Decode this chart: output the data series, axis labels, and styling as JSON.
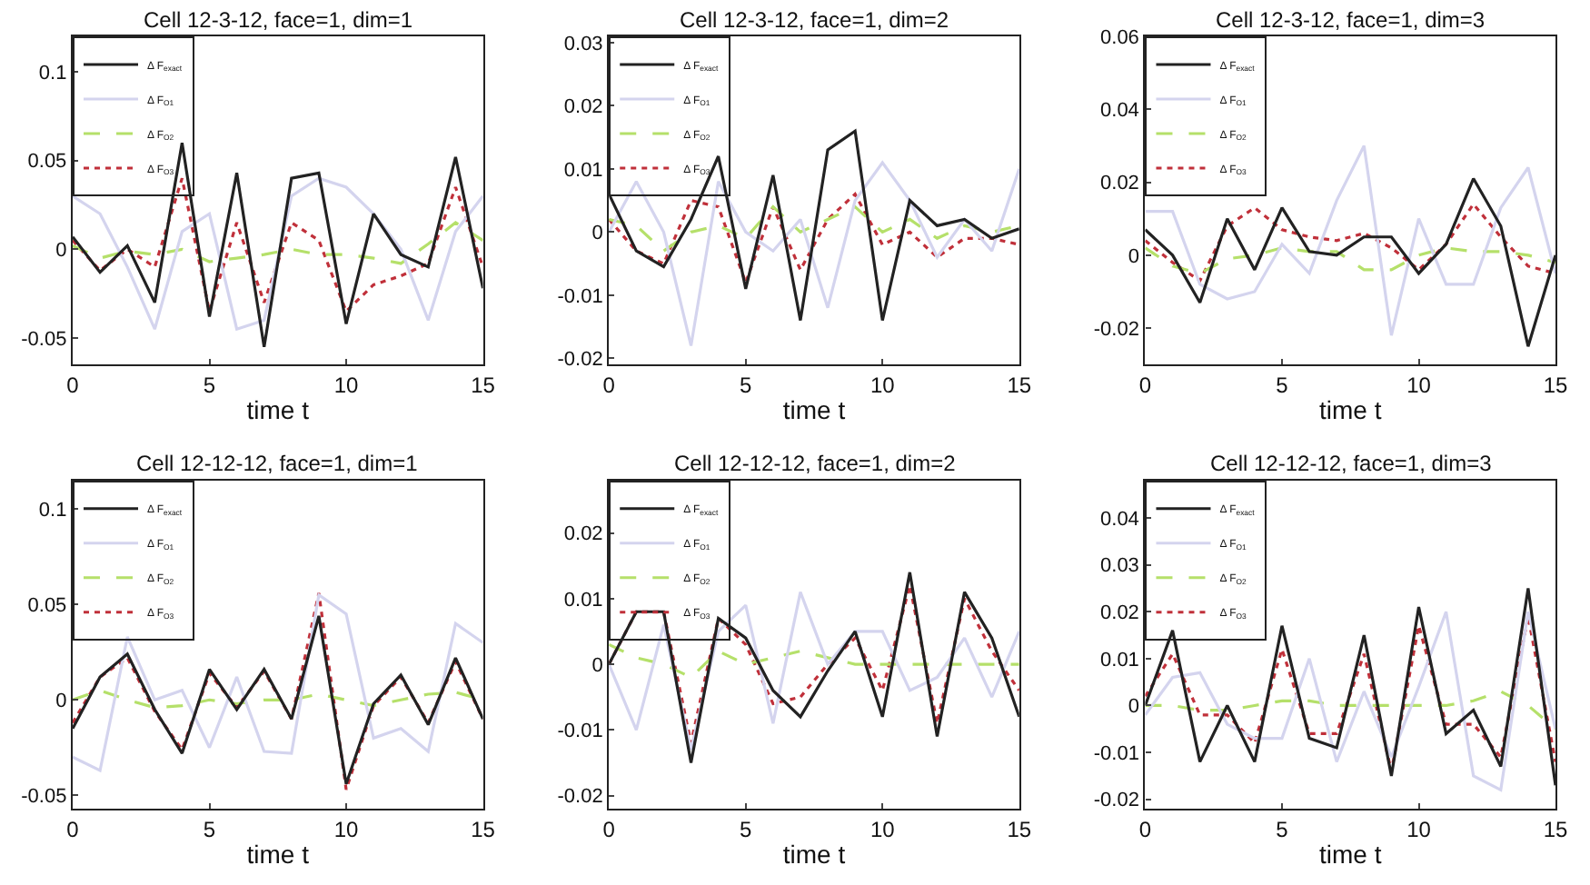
{
  "chart_data": [
    {
      "type": "line",
      "title": "Cell 12-3-12, face=1, dim=1",
      "xlabel": "time t",
      "x": [
        0,
        1,
        2,
        3,
        4,
        5,
        6,
        7,
        8,
        9,
        10,
        11,
        12,
        13,
        14,
        15
      ],
      "xlim": [
        0,
        15
      ],
      "xticks": [
        0,
        5,
        10,
        15
      ],
      "ylim": [
        -0.065,
        0.12
      ],
      "yticks": [
        -0.05,
        0,
        0.05,
        0.1
      ],
      "grid": false,
      "legend": "top left",
      "series": [
        {
          "name": "Δ F$_{exact}$",
          "color": "#222222",
          "line_style": "solid",
          "values": [
            0.007,
            -0.013,
            0.002,
            -0.03,
            0.06,
            -0.038,
            0.043,
            -0.055,
            0.04,
            0.043,
            -0.042,
            0.02,
            -0.003,
            -0.01,
            0.052,
            -0.022
          ]
        },
        {
          "name": "Δ F$_{O1}$",
          "color": "#d4d4ee",
          "line_style": "solid",
          "values": [
            0.03,
            0.02,
            -0.01,
            -0.045,
            0.01,
            0.02,
            -0.045,
            -0.04,
            0.03,
            0.04,
            0.035,
            0.02,
            0.0,
            -0.04,
            0.01,
            0.03
          ]
        },
        {
          "name": "Δ F$_{O2}$",
          "color": "#b5e06a",
          "line_style": "dashed",
          "values": [
            0.002,
            -0.005,
            -0.001,
            -0.003,
            0.0,
            -0.007,
            -0.005,
            -0.003,
            0.0,
            -0.003,
            -0.003,
            -0.005,
            -0.008,
            0.003,
            0.015,
            0.005
          ]
        },
        {
          "name": "Δ F$_{O3}$",
          "color": "#c0303a",
          "line_style": "dotted",
          "values": [
            0.005,
            -0.012,
            0.0,
            -0.01,
            0.04,
            -0.035,
            0.015,
            -0.03,
            0.015,
            0.005,
            -0.035,
            -0.02,
            -0.015,
            -0.008,
            0.035,
            -0.01
          ]
        }
      ]
    },
    {
      "type": "line",
      "title": "Cell 12-3-12, face=1, dim=2",
      "xlabel": "time t",
      "x": [
        0,
        1,
        2,
        3,
        4,
        5,
        6,
        7,
        8,
        9,
        10,
        11,
        12,
        13,
        14,
        15
      ],
      "xlim": [
        0,
        15
      ],
      "xticks": [
        0,
        5,
        10,
        15
      ],
      "ylim": [
        -0.021,
        0.031
      ],
      "yticks": [
        -0.02,
        -0.01,
        0,
        0.01,
        0.02,
        0.03
      ],
      "grid": false,
      "legend": "top left",
      "series": [
        {
          "name": "Δ F$_{exact}$",
          "color": "#222222",
          "line_style": "solid",
          "values": [
            0.006,
            -0.003,
            -0.0055,
            0.002,
            0.012,
            -0.009,
            0.009,
            -0.014,
            0.013,
            0.016,
            -0.014,
            0.005,
            0.001,
            0.002,
            -0.001,
            0.0005
          ]
        },
        {
          "name": "Δ F$_{O1}$",
          "color": "#d4d4ee",
          "line_style": "solid",
          "values": [
            0.0,
            0.008,
            0.0,
            -0.018,
            0.008,
            0.0,
            -0.003,
            0.002,
            -0.012,
            0.005,
            0.011,
            0.005,
            -0.004,
            0.002,
            -0.003,
            0.01
          ]
        },
        {
          "name": "Δ F$_{O2}$",
          "color": "#b5e06a",
          "line_style": "dashed",
          "values": [
            0.002,
            0.001,
            -0.003,
            0.0,
            0.001,
            -0.001,
            0.004,
            0.0,
            0.002,
            0.004,
            0.0,
            0.002,
            -0.001,
            0.001,
            0.0,
            0.001
          ]
        },
        {
          "name": "Δ F$_{O3}$",
          "color": "#c0303a",
          "line_style": "dotted",
          "values": [
            0.002,
            -0.003,
            -0.005,
            0.005,
            0.004,
            -0.008,
            0.004,
            -0.006,
            0.002,
            0.006,
            -0.002,
            0.0,
            -0.004,
            -0.001,
            -0.001,
            -0.002
          ]
        }
      ]
    },
    {
      "type": "line",
      "title": "Cell 12-3-12, face=1, dim=3",
      "xlabel": "time t",
      "x": [
        0,
        1,
        2,
        3,
        4,
        5,
        6,
        7,
        8,
        9,
        10,
        11,
        12,
        13,
        14,
        15
      ],
      "xlim": [
        0,
        15
      ],
      "xticks": [
        0,
        5,
        10,
        15
      ],
      "ylim": [
        -0.03,
        0.06
      ],
      "yticks": [
        -0.02,
        0,
        0.02,
        0.04,
        0.06
      ],
      "grid": false,
      "legend": "top left",
      "series": [
        {
          "name": "Δ F$_{exact}$",
          "color": "#222222",
          "line_style": "solid",
          "values": [
            0.007,
            0.0,
            -0.013,
            0.01,
            -0.004,
            0.013,
            0.001,
            0.0,
            0.005,
            0.005,
            -0.005,
            0.003,
            0.021,
            0.008,
            -0.025,
            0.0
          ]
        },
        {
          "name": "Δ F$_{O1}$",
          "color": "#d4d4ee",
          "line_style": "solid",
          "values": [
            0.012,
            0.012,
            -0.008,
            -0.012,
            -0.01,
            0.003,
            -0.005,
            0.015,
            0.03,
            -0.022,
            0.01,
            -0.008,
            -0.008,
            0.013,
            0.024,
            -0.005
          ]
        },
        {
          "name": "Δ F$_{O2}$",
          "color": "#b5e06a",
          "line_style": "dashed",
          "values": [
            0.002,
            -0.003,
            -0.005,
            -0.001,
            0.0,
            0.002,
            0.001,
            0.001,
            -0.004,
            -0.004,
            0.0,
            0.002,
            0.001,
            0.001,
            0.0,
            -0.002
          ]
        },
        {
          "name": "Δ F$_{O3}$",
          "color": "#c0303a",
          "line_style": "dotted",
          "values": [
            0.004,
            -0.002,
            -0.007,
            0.008,
            0.013,
            0.007,
            0.005,
            0.004,
            0.006,
            0.002,
            -0.004,
            0.003,
            0.014,
            0.005,
            -0.003,
            -0.005
          ]
        }
      ]
    },
    {
      "type": "line",
      "title": "Cell 12-12-12, face=1, dim=1",
      "xlabel": "time t",
      "x": [
        0,
        1,
        2,
        3,
        4,
        5,
        6,
        7,
        8,
        9,
        10,
        11,
        12,
        13,
        14,
        15
      ],
      "xlim": [
        0,
        15
      ],
      "xticks": [
        0,
        5,
        10,
        15
      ],
      "ylim": [
        -0.057,
        0.115
      ],
      "yticks": [
        -0.05,
        0,
        0.05,
        0.1
      ],
      "grid": false,
      "legend": "top left",
      "series": [
        {
          "name": "Δ F$_{exact}$",
          "color": "#222222",
          "line_style": "solid",
          "values": [
            -0.015,
            0.012,
            0.024,
            -0.005,
            -0.028,
            0.016,
            -0.005,
            0.016,
            -0.01,
            0.044,
            -0.044,
            -0.002,
            0.013,
            -0.013,
            0.022,
            -0.01
          ]
        },
        {
          "name": "Δ F$_{O1}$",
          "color": "#d4d4ee",
          "line_style": "solid",
          "values": [
            -0.03,
            -0.037,
            0.033,
            0.0,
            0.005,
            -0.025,
            0.012,
            -0.027,
            -0.028,
            0.055,
            0.045,
            -0.02,
            -0.015,
            -0.027,
            0.04,
            0.03
          ]
        },
        {
          "name": "Δ F$_{O2}$",
          "color": "#b5e06a",
          "line_style": "dashed",
          "values": [
            0.0,
            0.005,
            0.0,
            -0.004,
            -0.003,
            0.0,
            -0.002,
            0.0,
            0.0,
            0.003,
            0.0,
            -0.003,
            0.0,
            0.003,
            0.004,
            0.0
          ]
        },
        {
          "name": "Δ F$_{O3}$",
          "color": "#c0303a",
          "line_style": "dotted",
          "values": [
            -0.012,
            0.012,
            0.022,
            -0.006,
            -0.026,
            0.014,
            -0.004,
            0.015,
            -0.01,
            0.056,
            -0.047,
            -0.003,
            0.012,
            -0.012,
            0.02,
            -0.01
          ]
        }
      ]
    },
    {
      "type": "line",
      "title": "Cell 12-12-12, face=1, dim=2",
      "xlabel": "time t",
      "x": [
        0,
        1,
        2,
        3,
        4,
        5,
        6,
        7,
        8,
        9,
        10,
        11,
        12,
        13,
        14,
        15
      ],
      "xlim": [
        0,
        15
      ],
      "xticks": [
        0,
        5,
        10,
        15
      ],
      "ylim": [
        -0.022,
        0.028
      ],
      "yticks": [
        -0.02,
        -0.01,
        0,
        0.01,
        0.02
      ],
      "grid": false,
      "legend": "top left",
      "series": [
        {
          "name": "Δ F$_{exact}$",
          "color": "#222222",
          "line_style": "solid",
          "values": [
            0.0,
            0.008,
            0.008,
            -0.015,
            0.007,
            0.004,
            -0.004,
            -0.008,
            -0.001,
            0.005,
            -0.008,
            0.014,
            -0.011,
            0.011,
            0.004,
            -0.008
          ]
        },
        {
          "name": "Δ F$_{O1}$",
          "color": "#d4d4ee",
          "line_style": "solid",
          "values": [
            0.0,
            -0.01,
            0.006,
            -0.013,
            0.005,
            0.009,
            -0.009,
            0.011,
            0.0,
            0.005,
            0.005,
            -0.004,
            -0.002,
            0.004,
            -0.005,
            0.005
          ]
        },
        {
          "name": "Δ F$_{O2}$",
          "color": "#b5e06a",
          "line_style": "dashed",
          "values": [
            0.003,
            0.001,
            0.0,
            -0.002,
            0.002,
            0.0,
            0.001,
            0.002,
            0.001,
            0.0,
            0.0,
            0.0,
            0.0,
            0.0,
            0.0,
            0.0
          ]
        },
        {
          "name": "Δ F$_{O3}$",
          "color": "#c0303a",
          "line_style": "dotted",
          "values": [
            0.0,
            0.008,
            0.008,
            -0.012,
            0.007,
            0.003,
            -0.006,
            -0.005,
            0.0,
            0.004,
            -0.004,
            0.012,
            -0.009,
            0.01,
            0.002,
            -0.004
          ]
        }
      ]
    },
    {
      "type": "line",
      "title": "Cell 12-12-12, face=1, dim=3",
      "xlabel": "time t",
      "x": [
        0,
        1,
        2,
        3,
        4,
        5,
        6,
        7,
        8,
        9,
        10,
        11,
        12,
        13,
        14,
        15
      ],
      "xlim": [
        0,
        15
      ],
      "xticks": [
        0,
        5,
        10,
        15
      ],
      "ylim": [
        -0.022,
        0.048
      ],
      "yticks": [
        -0.02,
        -0.01,
        0,
        0.01,
        0.02,
        0.03,
        0.04
      ],
      "grid": false,
      "legend": "top left",
      "series": [
        {
          "name": "Δ F$_{exact}$",
          "color": "#222222",
          "line_style": "solid",
          "values": [
            0.0,
            0.016,
            -0.012,
            0.0,
            -0.012,
            0.017,
            -0.007,
            -0.009,
            0.015,
            -0.015,
            0.021,
            -0.006,
            -0.001,
            -0.013,
            0.025,
            -0.017
          ]
        },
        {
          "name": "Δ F$_{O1}$",
          "color": "#d4d4ee",
          "line_style": "solid",
          "values": [
            -0.002,
            0.006,
            0.007,
            -0.004,
            -0.007,
            -0.007,
            0.01,
            -0.012,
            0.003,
            -0.011,
            0.004,
            0.02,
            -0.015,
            -0.018,
            0.02,
            -0.005
          ]
        },
        {
          "name": "Δ F$_{O2}$",
          "color": "#b5e06a",
          "line_style": "dashed",
          "values": [
            0.0,
            0.0,
            -0.001,
            -0.001,
            0.0,
            0.001,
            0.001,
            0.0,
            0.0,
            0.0,
            0.0,
            0.0,
            0.001,
            0.003,
            0.0,
            -0.005
          ]
        },
        {
          "name": "Δ F$_{O3}$",
          "color": "#c0303a",
          "line_style": "dotted",
          "values": [
            0.002,
            0.011,
            -0.002,
            -0.002,
            -0.008,
            0.012,
            -0.006,
            -0.006,
            0.011,
            -0.014,
            0.017,
            -0.004,
            -0.004,
            -0.011,
            0.019,
            -0.012
          ]
        }
      ]
    }
  ]
}
